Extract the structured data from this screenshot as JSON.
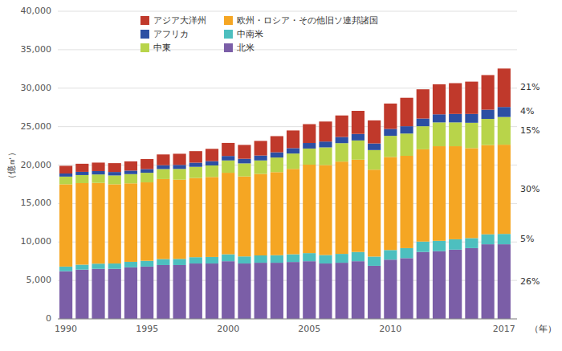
{
  "chart_data": {
    "type": "bar",
    "stacked": true,
    "x": [
      1990,
      1991,
      1992,
      1993,
      1994,
      1995,
      1996,
      1997,
      1998,
      1999,
      2000,
      2001,
      2002,
      2003,
      2004,
      2005,
      2006,
      2007,
      2008,
      2009,
      2010,
      2011,
      2012,
      2013,
      2014,
      2015,
      2016,
      2017
    ],
    "xlim": [
      1989.5,
      2017.8
    ],
    "xticks": [
      1990,
      1995,
      2000,
      2005,
      2010,
      2017
    ],
    "ylim": [
      0,
      40000
    ],
    "yticks": [
      0,
      {
        "value": 5000,
        "label": "5,000"
      },
      {
        "value": 10000,
        "label": "10,000"
      },
      {
        "value": 15000,
        "label": "15,000"
      },
      {
        "value": 20000,
        "label": "20,000"
      },
      {
        "value": 25000,
        "label": "25,000"
      },
      {
        "value": 30000,
        "label": "30,000"
      },
      {
        "value": 35000,
        "label": "35,000"
      },
      {
        "value": 40000,
        "label": "40,000"
      }
    ],
    "ylabel": "（億㎥）",
    "xlabel": "（年）",
    "grid": true,
    "legend": "upper left",
    "series": [
      {
        "name": "北米",
        "color": "#7b5ea7",
        "values": [
          6200,
          6400,
          6500,
          6500,
          6700,
          6800,
          7000,
          7000,
          7200,
          7200,
          7500,
          7200,
          7300,
          7300,
          7400,
          7500,
          7200,
          7300,
          7500,
          6900,
          7700,
          7900,
          8700,
          8800,
          9000,
          9200,
          9700,
          9700
        ]
      },
      {
        "name": "中南米",
        "color": "#4dbfbf",
        "values": [
          600,
          650,
          680,
          700,
          720,
          750,
          780,
          800,
          820,
          850,
          900,
          920,
          950,
          980,
          1000,
          1050,
          1100,
          1150,
          1200,
          1200,
          1250,
          1300,
          1350,
          1350,
          1350,
          1300,
          1300,
          1350
        ]
      },
      {
        "name": "欧州・ロシア・その他旧ソ連邦諸国",
        "color": "#f5a623",
        "values": [
          10700,
          10600,
          10500,
          10300,
          10200,
          10200,
          10400,
          10300,
          10300,
          10400,
          10600,
          10400,
          10600,
          10800,
          11100,
          11500,
          11700,
          12000,
          12000,
          11300,
          12100,
          12000,
          12000,
          12300,
          12100,
          11700,
          11600,
          11600
        ]
      },
      {
        "name": "中東",
        "color": "#b8d44a",
        "values": [
          1000,
          1050,
          1100,
          1150,
          1200,
          1250,
          1300,
          1400,
          1450,
          1500,
          1600,
          1700,
          1750,
          1900,
          2000,
          2100,
          2300,
          2400,
          2500,
          2550,
          2750,
          2900,
          3000,
          3100,
          3100,
          3300,
          3400,
          3600
        ]
      },
      {
        "name": "アフリカ",
        "color": "#2c4fa3",
        "values": [
          400,
          420,
          440,
          450,
          460,
          480,
          500,
          520,
          540,
          560,
          580,
          600,
          640,
          680,
          700,
          720,
          760,
          800,
          850,
          860,
          900,
          950,
          1000,
          1050,
          1100,
          1150,
          1200,
          1300
        ]
      },
      {
        "name": "アジア大洋州",
        "color": "#c0392b",
        "values": [
          1000,
          1050,
          1100,
          1150,
          1200,
          1300,
          1400,
          1450,
          1500,
          1600,
          1700,
          1800,
          1900,
          2100,
          2300,
          2450,
          2600,
          2800,
          3000,
          3000,
          3300,
          3700,
          3800,
          3900,
          4000,
          4200,
          4500,
          5000
        ]
      }
    ],
    "annotations": [
      "26%",
      "5%",
      "30%",
      "15%",
      "4%",
      "21%"
    ]
  }
}
